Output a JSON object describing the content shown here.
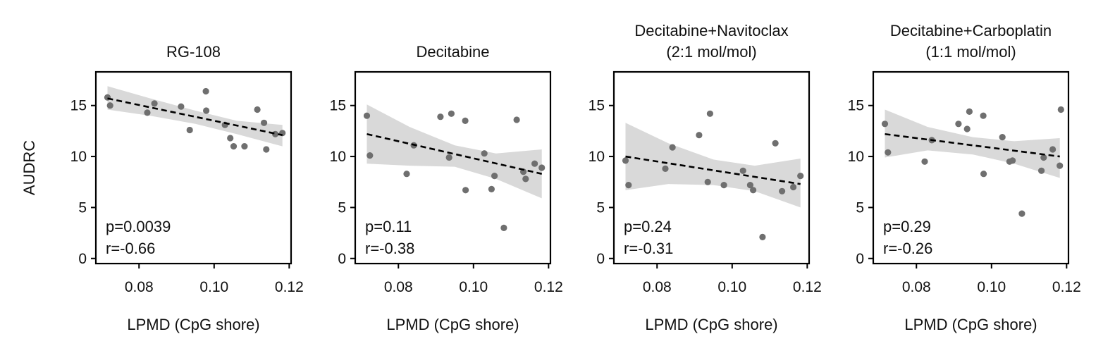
{
  "colors": {
    "points": "#6f6f6f",
    "ci_band": "#d9d9d9",
    "fit_line": "#000000",
    "axes": "#000000"
  },
  "chart_data": [
    {
      "type": "scatter",
      "title": "RG-108",
      "xlabel": "LPMD (CpG shore)",
      "ylabel": "AUDRC",
      "xlim": [
        0.0685,
        0.1205
      ],
      "ylim": [
        -0.5,
        18.3
      ],
      "xticks": [
        "0.08",
        "0.10",
        "0.12"
      ],
      "yticks": [
        "0",
        "5",
        "10",
        "15"
      ],
      "points": [
        [
          0.0716,
          15.8
        ],
        [
          0.0723,
          15.0
        ],
        [
          0.0822,
          14.3
        ],
        [
          0.0841,
          15.2
        ],
        [
          0.0912,
          14.9
        ],
        [
          0.0935,
          12.6
        ],
        [
          0.0978,
          16.4
        ],
        [
          0.0979,
          14.5
        ],
        [
          0.1029,
          13.1
        ],
        [
          0.1043,
          11.8
        ],
        [
          0.1052,
          11.0
        ],
        [
          0.1081,
          11.0
        ],
        [
          0.1115,
          14.6
        ],
        [
          0.1133,
          13.3
        ],
        [
          0.1139,
          10.7
        ],
        [
          0.1163,
          12.2
        ],
        [
          0.1182,
          12.3
        ]
      ],
      "fit": {
        "x": [
          0.0716,
          0.1182
        ],
        "y": [
          15.7,
          12.1
        ]
      },
      "ci": {
        "x": [
          0.0716,
          0.083,
          0.095,
          0.106,
          0.1182
        ],
        "upper": [
          16.9,
          15.7,
          14.5,
          13.5,
          13.1
        ],
        "lower": [
          14.6,
          14.0,
          13.2,
          12.2,
          11.0
        ]
      },
      "annotations": [
        "p=0.0039",
        "r=-0.66"
      ]
    },
    {
      "type": "scatter",
      "title": "Decitabine",
      "xlabel": "LPMD (CpG shore)",
      "ylabel": "",
      "xlim": [
        0.0685,
        0.1205
      ],
      "ylim": [
        -0.5,
        18.3
      ],
      "xticks": [
        "0.08",
        "0.10",
        "0.12"
      ],
      "yticks": [
        "0",
        "5",
        "10",
        "15"
      ],
      "points": [
        [
          0.0716,
          14.0
        ],
        [
          0.0724,
          10.1
        ],
        [
          0.0822,
          8.3
        ],
        [
          0.0841,
          11.1
        ],
        [
          0.0912,
          13.9
        ],
        [
          0.0935,
          9.9
        ],
        [
          0.0941,
          14.2
        ],
        [
          0.0978,
          13.5
        ],
        [
          0.0979,
          6.7
        ],
        [
          0.1029,
          10.3
        ],
        [
          0.1048,
          6.8
        ],
        [
          0.1056,
          8.1
        ],
        [
          0.1081,
          3.0
        ],
        [
          0.1115,
          13.6
        ],
        [
          0.1133,
          8.5
        ],
        [
          0.1139,
          7.8
        ],
        [
          0.1163,
          9.3
        ],
        [
          0.1182,
          8.9
        ]
      ],
      "fit": {
        "x": [
          0.0716,
          0.1182
        ],
        "y": [
          12.2,
          8.3
        ]
      },
      "ci": {
        "x": [
          0.0716,
          0.083,
          0.095,
          0.106,
          0.1182
        ],
        "upper": [
          15.1,
          12.9,
          11.1,
          10.3,
          10.7
        ],
        "lower": [
          9.3,
          9.1,
          9.0,
          7.8,
          5.9
        ]
      },
      "annotations": [
        "p=0.11",
        "r=-0.38"
      ]
    },
    {
      "type": "scatter",
      "title": "Decitabine+Navitoclax (2:1 mol/mol)",
      "xlabel": "LPMD (CpG shore)",
      "ylabel": "",
      "xlim": [
        0.0685,
        0.1205
      ],
      "ylim": [
        -0.5,
        18.3
      ],
      "xticks": [
        "0.08",
        "0.10",
        "0.12"
      ],
      "yticks": [
        "0",
        "5",
        "10",
        "15"
      ],
      "points": [
        [
          0.0716,
          9.6
        ],
        [
          0.0724,
          7.2
        ],
        [
          0.0822,
          8.8
        ],
        [
          0.0841,
          10.9
        ],
        [
          0.0912,
          12.1
        ],
        [
          0.0935,
          7.5
        ],
        [
          0.0941,
          14.2
        ],
        [
          0.0978,
          7.2
        ],
        [
          0.1029,
          8.6
        ],
        [
          0.1048,
          7.2
        ],
        [
          0.1056,
          6.7
        ],
        [
          0.1081,
          2.1
        ],
        [
          0.1115,
          11.3
        ],
        [
          0.1133,
          6.6
        ],
        [
          0.1163,
          7.0
        ],
        [
          0.1182,
          8.1
        ]
      ],
      "fit": {
        "x": [
          0.0716,
          0.1182
        ],
        "y": [
          10.0,
          7.3
        ]
      },
      "ci": {
        "x": [
          0.0716,
          0.083,
          0.095,
          0.106,
          0.1182
        ],
        "upper": [
          13.3,
          11.3,
          9.7,
          9.1,
          9.8
        ],
        "lower": [
          6.7,
          7.3,
          7.2,
          6.6,
          5.0
        ]
      },
      "annotations": [
        "p=0.24",
        "r=-0.31"
      ]
    },
    {
      "type": "scatter",
      "title": "Decitabine+Carboplatin (1:1 mol/mol)",
      "xlabel": "LPMD (CpG shore)",
      "ylabel": "",
      "xlim": [
        0.0685,
        0.1205
      ],
      "ylim": [
        -0.5,
        18.3
      ],
      "xticks": [
        "0.08",
        "0.10",
        "0.12"
      ],
      "yticks": [
        "0",
        "5",
        "10",
        "15"
      ],
      "points": [
        [
          0.0716,
          13.2
        ],
        [
          0.0724,
          10.4
        ],
        [
          0.0822,
          9.5
        ],
        [
          0.0841,
          11.6
        ],
        [
          0.0912,
          13.2
        ],
        [
          0.0935,
          12.7
        ],
        [
          0.0941,
          14.4
        ],
        [
          0.0978,
          14.0
        ],
        [
          0.0979,
          8.3
        ],
        [
          0.1029,
          11.9
        ],
        [
          0.1048,
          9.5
        ],
        [
          0.1056,
          9.6
        ],
        [
          0.1081,
          4.4
        ],
        [
          0.1133,
          8.6
        ],
        [
          0.1139,
          9.9
        ],
        [
          0.1163,
          10.7
        ],
        [
          0.1182,
          9.1
        ],
        [
          0.1185,
          14.6
        ]
      ],
      "fit": {
        "x": [
          0.0716,
          0.1182
        ],
        "y": [
          12.2,
          10.0
        ]
      },
      "ci": {
        "x": [
          0.0716,
          0.083,
          0.095,
          0.106,
          0.1182
        ],
        "upper": [
          14.6,
          12.9,
          11.9,
          11.5,
          11.8
        ],
        "lower": [
          9.9,
          10.6,
          10.2,
          9.3,
          7.9
        ]
      },
      "annotations": [
        "p=0.29",
        "r=-0.26"
      ]
    }
  ]
}
